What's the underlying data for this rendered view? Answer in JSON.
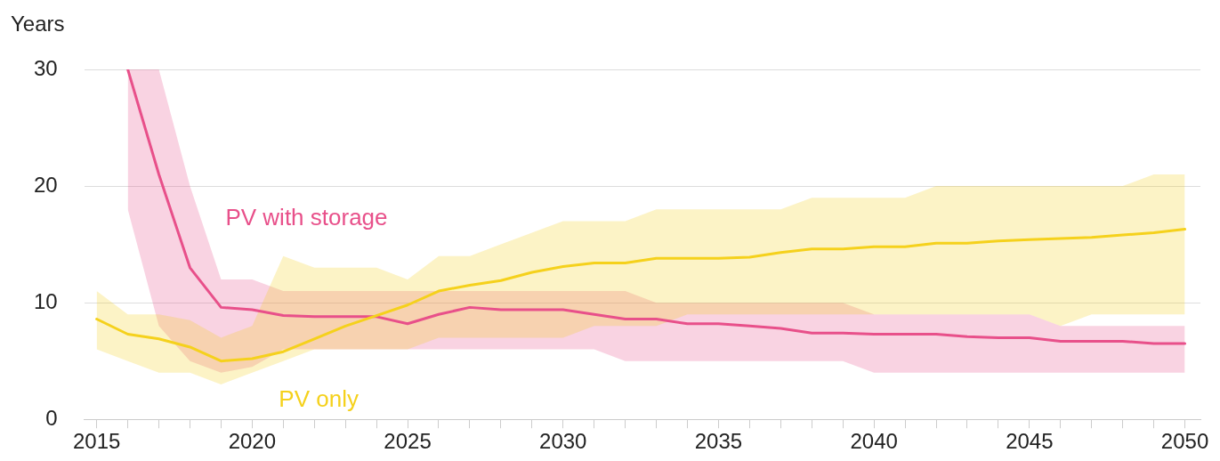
{
  "chart_data": {
    "type": "line",
    "ylabel": "Years",
    "x": [
      2015,
      2016,
      2017,
      2018,
      2019,
      2020,
      2021,
      2022,
      2023,
      2024,
      2025,
      2026,
      2027,
      2028,
      2029,
      2030,
      2031,
      2032,
      2033,
      2034,
      2035,
      2036,
      2037,
      2038,
      2039,
      2040,
      2041,
      2042,
      2043,
      2044,
      2045,
      2046,
      2047,
      2048,
      2049,
      2050
    ],
    "series": [
      {
        "name": "PV only",
        "color": "#f5d11c",
        "values": [
          8.6,
          7.3,
          6.9,
          6.2,
          5.0,
          5.2,
          5.8,
          6.9,
          8.0,
          8.9,
          9.8,
          11.0,
          11.5,
          11.9,
          12.6,
          13.1,
          13.4,
          13.4,
          13.8,
          13.8,
          13.8,
          13.9,
          14.3,
          14.6,
          14.6,
          14.8,
          14.8,
          15.1,
          15.1,
          15.3,
          15.4,
          15.5,
          15.6,
          15.8,
          16.0,
          16.3
        ],
        "lower": [
          6,
          5,
          4,
          4,
          3,
          4,
          5,
          6,
          6,
          6,
          6,
          7,
          7,
          7,
          7,
          7,
          8,
          8,
          8,
          9,
          9,
          9,
          9,
          9,
          9,
          9,
          9,
          9,
          9,
          9,
          9,
          8,
          9,
          9,
          9,
          9
        ],
        "upper": [
          11,
          9,
          9,
          8.5,
          7,
          8,
          14,
          13,
          13,
          13,
          12,
          14,
          14,
          15,
          16,
          17,
          17,
          17,
          18,
          18,
          18,
          18,
          18,
          19,
          19,
          19,
          19,
          20,
          20,
          20,
          20,
          20,
          20,
          20,
          21,
          21
        ]
      },
      {
        "name": "PV with storage",
        "color": "#e8508a",
        "values": [
          null,
          30,
          21,
          13.0,
          9.6,
          9.4,
          8.9,
          8.8,
          8.8,
          8.8,
          8.2,
          9.0,
          9.6,
          9.4,
          9.4,
          9.4,
          9.0,
          8.6,
          8.6,
          8.2,
          8.2,
          8.0,
          7.8,
          7.4,
          7.4,
          7.3,
          7.3,
          7.3,
          7.1,
          7.0,
          7.0,
          6.7,
          6.7,
          6.7,
          6.5,
          6.5
        ],
        "lower": [
          null,
          18,
          8,
          5,
          4,
          4.5,
          6,
          6,
          6,
          6,
          6,
          6,
          6,
          6,
          6,
          6,
          6,
          5,
          5,
          5,
          5,
          5,
          5,
          5,
          5,
          4,
          4,
          4,
          4,
          4,
          4,
          4,
          4,
          4,
          4,
          4
        ],
        "upper": [
          null,
          30,
          30,
          20,
          12,
          12,
          11,
          11,
          11,
          11,
          11,
          11,
          11,
          11,
          11,
          11,
          11,
          11,
          10,
          10,
          10,
          10,
          10,
          10,
          10,
          9,
          9,
          9,
          9,
          9,
          9,
          8,
          8,
          8,
          8,
          8
        ]
      }
    ],
    "xlim": [
      2014.6,
      2050.5
    ],
    "xticks": [
      2015,
      {
        "value": 2016,
        "label": null
      },
      {
        "value": 2017,
        "label": null
      },
      {
        "value": 2018,
        "label": null
      },
      {
        "value": 2019,
        "label": null
      },
      2020,
      {
        "value": 2021,
        "label": null
      },
      {
        "value": 2022,
        "label": null
      },
      {
        "value": 2023,
        "label": null
      },
      {
        "value": 2024,
        "label": null
      },
      2025,
      {
        "value": 2026,
        "label": null
      },
      {
        "value": 2027,
        "label": null
      },
      {
        "value": 2028,
        "label": null
      },
      {
        "value": 2029,
        "label": null
      },
      2030,
      {
        "value": 2031,
        "label": null
      },
      {
        "value": 2032,
        "label": null
      },
      {
        "value": 2033,
        "label": null
      },
      {
        "value": 2034,
        "label": null
      },
      2035,
      {
        "value": 2036,
        "label": null
      },
      {
        "value": 2037,
        "label": null
      },
      {
        "value": 2038,
        "label": null
      },
      {
        "value": 2039,
        "label": null
      },
      2040,
      {
        "value": 2041,
        "label": null
      },
      {
        "value": 2042,
        "label": null
      },
      {
        "value": 2043,
        "label": null
      },
      {
        "value": 2044,
        "label": null
      },
      2045,
      {
        "value": 2046,
        "label": null
      },
      {
        "value": 2047,
        "label": null
      },
      {
        "value": 2048,
        "label": null
      },
      {
        "value": 2049,
        "label": null
      },
      2050
    ],
    "ylim": [
      0,
      30
    ],
    "yticks": [
      0,
      10,
      20,
      30
    ],
    "grid": "y",
    "legend": false,
    "marker": "none",
    "line_style": "solid"
  }
}
